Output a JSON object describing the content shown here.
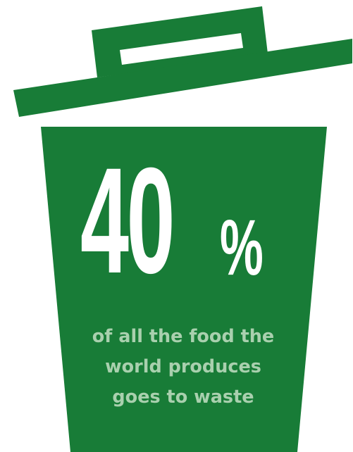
{
  "infographic": {
    "statistic": {
      "number": "40",
      "unit": "%"
    },
    "caption_lines": [
      "of all the food the",
      "world produces",
      "goes to waste"
    ]
  },
  "colors": {
    "bin_green": "#187c37",
    "stat_text": "#ffffff",
    "caption_text": "#a9d0ae",
    "background": "#ffffff"
  },
  "icons": {
    "main": "trash-bin-icon"
  }
}
